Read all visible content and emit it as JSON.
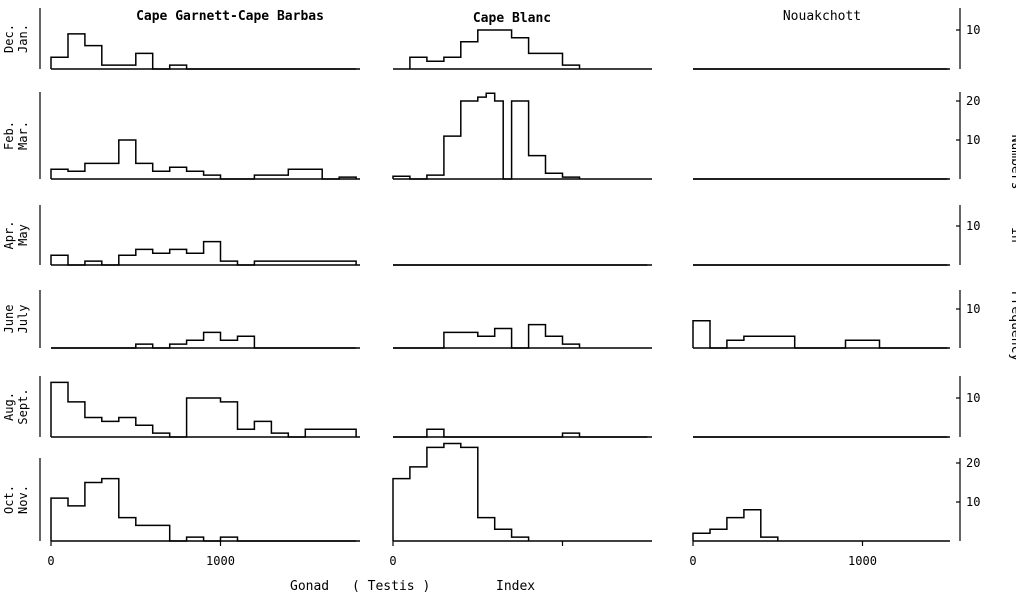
{
  "chart_data": {
    "type": "histogram-panels",
    "x_axis": {
      "label_parts": [
        "Gonad",
        "( Testis )",
        "Index"
      ],
      "tick_values": [
        0,
        1000
      ],
      "tick_labels": [
        "0",
        "1000"
      ],
      "xlim": [
        0,
        1500
      ]
    },
    "y_axis": {
      "label_parts": [
        "Frequency",
        "in",
        "Numbers"
      ]
    },
    "columns": [
      {
        "key": "cgcb",
        "title": "Cape Garnett-Cape Barbas",
        "xlim": [
          0,
          1800
        ],
        "bold": true
      },
      {
        "key": "cb",
        "title": "Cape Blanc",
        "xlim": [
          0,
          1500
        ],
        "bold": true
      },
      {
        "key": "nk",
        "title": "Nouakchott",
        "xlim": [
          0,
          1500
        ],
        "bold": false
      }
    ],
    "rows": [
      {
        "label_lines": [
          "Dec.",
          "Jan."
        ],
        "ymax": 13,
        "y_ticks": [
          10
        ],
        "y_tick_labels": [
          "10"
        ],
        "series": {
          "cgcb": {
            "edges": [
              0,
              100,
              200,
              300,
              400,
              500,
              600,
              700,
              800,
              1800
            ],
            "counts": [
              3,
              9,
              6,
              1,
              1,
              4,
              0,
              1,
              0
            ]
          },
          "cb": {
            "edges": [
              100,
              200,
              300,
              400,
              500,
              600,
              700,
              800,
              900,
              1000,
              1100
            ],
            "counts": [
              3,
              2,
              3,
              7,
              10,
              10,
              8,
              4,
              4,
              1
            ]
          },
          "nk": {
            "edges": [
              0,
              1500
            ],
            "counts": [
              0
            ]
          }
        }
      },
      {
        "label_lines": [
          "Feb.",
          "Mar."
        ],
        "ymax": 23,
        "y_ticks": [
          10,
          20
        ],
        "y_tick_labels": [
          "10",
          "20"
        ],
        "series": {
          "cgcb": {
            "edges": [
              0,
              100,
              200,
              400,
              500,
              600,
              700,
              800,
              900,
              1000,
              1200,
              1400,
              1600,
              1700,
              1800
            ],
            "counts": [
              2.5,
              2,
              4,
              10,
              4,
              2,
              3,
              2,
              1,
              0,
              1,
              2.5,
              0,
              0.5
            ]
          },
          "cb": {
            "edges": [
              0,
              100,
              200,
              300,
              400,
              500,
              550,
              600,
              650,
              700,
              800,
              900,
              1000,
              1100
            ],
            "counts": [
              0.7,
              0,
              1,
              11,
              20,
              21,
              22,
              20,
              0,
              20,
              6,
              1.5,
              0.5
            ]
          },
          "nk": {
            "edges": [
              0,
              1500
            ],
            "counts": [
              0
            ]
          }
        }
      },
      {
        "label_lines": [
          "Apr.",
          "May"
        ],
        "ymax": 13,
        "y_ticks": [
          10
        ],
        "y_tick_labels": [
          "10"
        ],
        "series": {
          "cgcb": {
            "edges": [
              0,
              100,
              200,
              300,
              400,
              500,
              600,
              700,
              800,
              900,
              1000,
              1100,
              1200,
              1800
            ],
            "counts": [
              2.5,
              0,
              1,
              0,
              2.5,
              4,
              3,
              4,
              3,
              6,
              1,
              0,
              1
            ]
          },
          "cb": {
            "edges": [
              0,
              1500
            ],
            "counts": [
              0
            ]
          },
          "nk": {
            "edges": [
              0,
              1500
            ],
            "counts": [
              0
            ]
          }
        }
      },
      {
        "label_lines": [
          "June",
          "July"
        ],
        "ymax": 13,
        "y_ticks": [
          10
        ],
        "y_tick_labels": [
          "10"
        ],
        "series": {
          "cgcb": {
            "edges": [
              0,
              500,
              600,
              700,
              800,
              900,
              1000,
              1100,
              1200,
              1800
            ],
            "counts": [
              0,
              1,
              0,
              1,
              2,
              4,
              2,
              3,
              0
            ]
          },
          "cb": {
            "edges": [
              0,
              300,
              500,
              600,
              700,
              800,
              900,
              1000,
              1100
            ],
            "counts": [
              0,
              4,
              3,
              5,
              0,
              6,
              3,
              1
            ]
          },
          "nk": {
            "edges": [
              0,
              100,
              200,
              300,
              600,
              900,
              1100,
              1500
            ],
            "counts": [
              7,
              0,
              2,
              3,
              0,
              2,
              0
            ]
          }
        }
      },
      {
        "label_lines": [
          "Aug.",
          "Sept."
        ],
        "ymax": 13,
        "y_ticks": [
          10
        ],
        "y_tick_labels": [
          "10"
        ],
        "series": {
          "cgcb": {
            "edges": [
              0,
              100,
              200,
              300,
              400,
              500,
              600,
              700,
              800,
              1000,
              1100,
              1200,
              1300,
              1400,
              1500,
              1800
            ],
            "counts": [
              14,
              9,
              5,
              4,
              5,
              3,
              1,
              0,
              10,
              9,
              2,
              4,
              1,
              0,
              2
            ]
          },
          "cb": {
            "edges": [
              0,
              200,
              300,
              1000,
              1100,
              1500
            ],
            "counts": [
              0,
              2,
              0,
              1,
              0
            ]
          },
          "nk": {
            "edges": [
              0,
              1500
            ],
            "counts": [
              0
            ]
          }
        }
      },
      {
        "label_lines": [
          "Oct.",
          "Nov."
        ],
        "ymax": 23,
        "y_ticks": [
          10,
          20
        ],
        "y_tick_labels": [
          "10",
          "20"
        ],
        "series": {
          "cgcb": {
            "edges": [
              0,
              100,
              200,
              300,
              400,
              500,
              700,
              800,
              900,
              1000,
              1100,
              1800
            ],
            "counts": [
              11,
              9,
              15,
              16,
              6,
              4,
              0,
              1,
              0,
              1,
              0
            ]
          },
          "cb": {
            "edges": [
              0,
              100,
              200,
              300,
              400,
              500,
              600,
              700,
              800
            ],
            "counts": [
              16,
              19,
              24,
              25,
              24,
              6,
              3,
              1
            ]
          },
          "nk": {
            "edges": [
              0,
              100,
              200,
              300,
              400,
              500
            ],
            "counts": [
              2,
              3,
              6,
              8,
              1
            ]
          }
        }
      }
    ]
  }
}
